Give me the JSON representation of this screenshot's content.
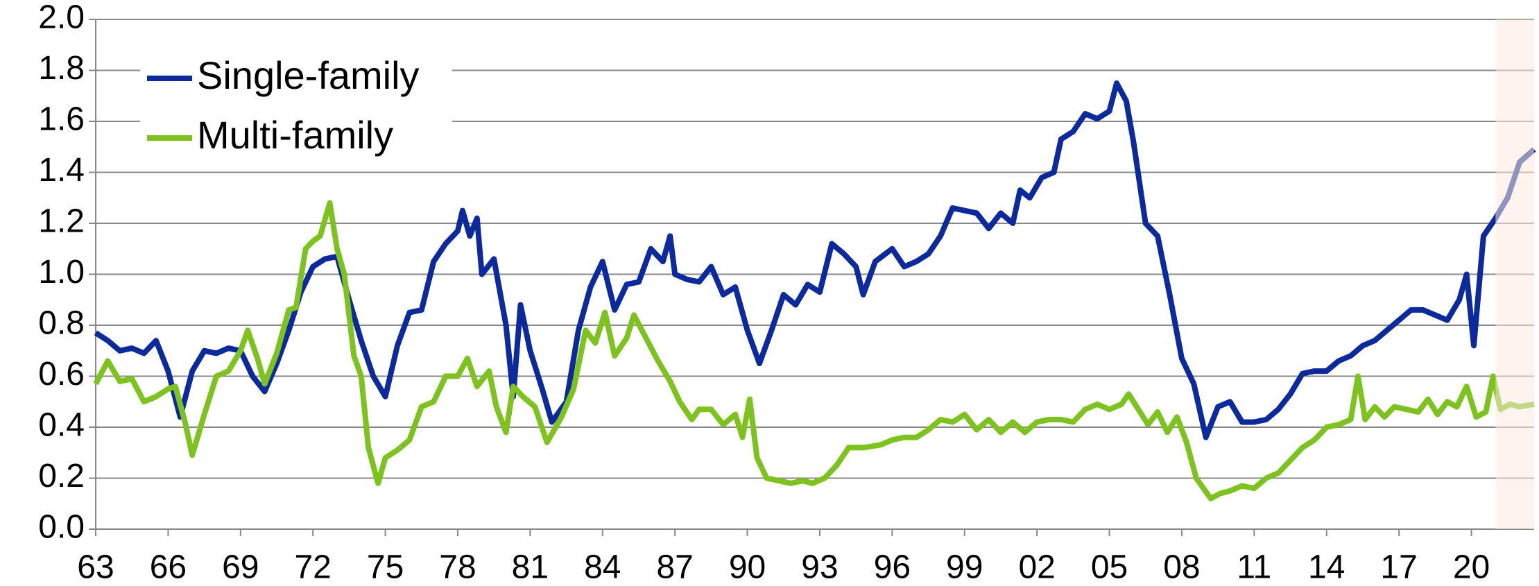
{
  "chart_data": {
    "type": "line",
    "xlim": [
      1963,
      2022.6
    ],
    "xticks": [
      {
        "value": 1963,
        "label": "63"
      },
      {
        "value": 1966,
        "label": "66"
      },
      {
        "value": 1969,
        "label": "69"
      },
      {
        "value": 1972,
        "label": "72"
      },
      {
        "value": 1975,
        "label": "75"
      },
      {
        "value": 1978,
        "label": "78"
      },
      {
        "value": 1981,
        "label": "81"
      },
      {
        "value": 1984,
        "label": "84"
      },
      {
        "value": 1987,
        "label": "87"
      },
      {
        "value": 1990,
        "label": "90"
      },
      {
        "value": 1993,
        "label": "93"
      },
      {
        "value": 1996,
        "label": "96"
      },
      {
        "value": 1999,
        "label": "99"
      },
      {
        "value": 2002,
        "label": "02"
      },
      {
        "value": 2005,
        "label": "05"
      },
      {
        "value": 2008,
        "label": "08"
      },
      {
        "value": 2011,
        "label": "11"
      },
      {
        "value": 2014,
        "label": "14"
      },
      {
        "value": 2017,
        "label": "17"
      },
      {
        "value": 2020,
        "label": "20"
      }
    ],
    "ylim": [
      0,
      2.0
    ],
    "yticks": [
      {
        "value": 0,
        "label": "0.0"
      },
      {
        "value": 0.2,
        "label": "0.2"
      },
      {
        "value": 0.4,
        "label": "0.4"
      },
      {
        "value": 0.6,
        "label": "0.6"
      },
      {
        "value": 0.8,
        "label": "0.8"
      },
      {
        "value": 1.0,
        "label": "1.0"
      },
      {
        "value": 1.2,
        "label": "1.2"
      },
      {
        "value": 1.4,
        "label": "1.4"
      },
      {
        "value": 1.6,
        "label": "1.6"
      },
      {
        "value": 1.8,
        "label": "1.8"
      },
      {
        "value": 2.0,
        "label": "2.0"
      }
    ],
    "grid": true,
    "legend": "upper left",
    "shaded_region": [
      2021,
      2022.6
    ],
    "shade_color": "#fde9df",
    "series": [
      {
        "name": "Single-family",
        "color": "#0c2a9c",
        "x": [
          1963,
          1963.5,
          1964,
          1964.5,
          1965,
          1965.5,
          1966,
          1966.5,
          1967,
          1967.5,
          1968,
          1968.5,
          1969,
          1969.5,
          1970,
          1970.5,
          1971,
          1971.5,
          1972,
          1972.5,
          1973,
          1973.5,
          1974,
          1974.5,
          1975,
          1975.5,
          1976,
          1976.5,
          1977,
          1977.5,
          1978,
          1978.2,
          1978.5,
          1978.8,
          1979,
          1979.5,
          1980,
          1980.3,
          1980.6,
          1981,
          1981.5,
          1981.9,
          1982.5,
          1983,
          1983.5,
          1984,
          1984.5,
          1985,
          1985.5,
          1986,
          1986.5,
          1986.8,
          1987,
          1987.5,
          1988,
          1988.5,
          1989,
          1989.5,
          1990,
          1990.5,
          1991,
          1991.5,
          1992,
          1992.5,
          1993,
          1993.5,
          1994,
          1994.5,
          1994.8,
          1995.3,
          1996,
          1996.5,
          1997,
          1997.5,
          1998,
          1998.5,
          1999,
          1999.5,
          2000,
          2000.5,
          2001,
          2001.3,
          2001.7,
          2002.2,
          2002.7,
          2003,
          2003.5,
          2004,
          2004.5,
          2005,
          2005.3,
          2005.7,
          2006,
          2006.5,
          2007,
          2007.5,
          2008,
          2008.5,
          2009,
          2009.5,
          2010,
          2010.5,
          2011,
          2011.5,
          2012,
          2012.5,
          2013,
          2013.5,
          2014,
          2014.5,
          2015,
          2015.5,
          2016,
          2016.5,
          2017,
          2017.5,
          2018,
          2018.5,
          2019,
          2019.5,
          2019.8,
          2020.1,
          2020.5,
          2021,
          2021.5,
          2022,
          2022.6
        ],
        "values": [
          0.77,
          0.74,
          0.7,
          0.71,
          0.69,
          0.74,
          0.62,
          0.44,
          0.62,
          0.7,
          0.69,
          0.71,
          0.7,
          0.6,
          0.54,
          0.65,
          0.78,
          0.93,
          1.03,
          1.06,
          1.07,
          0.9,
          0.74,
          0.6,
          0.52,
          0.72,
          0.85,
          0.86,
          1.05,
          1.12,
          1.17,
          1.25,
          1.15,
          1.22,
          1.0,
          1.06,
          0.8,
          0.52,
          0.88,
          0.7,
          0.55,
          0.42,
          0.5,
          0.78,
          0.95,
          1.05,
          0.86,
          0.96,
          0.97,
          1.1,
          1.05,
          1.15,
          1.0,
          0.98,
          0.97,
          1.03,
          0.92,
          0.95,
          0.78,
          0.65,
          0.78,
          0.92,
          0.88,
          0.96,
          0.93,
          1.12,
          1.08,
          1.03,
          0.92,
          1.05,
          1.1,
          1.03,
          1.05,
          1.08,
          1.15,
          1.26,
          1.25,
          1.24,
          1.18,
          1.24,
          1.2,
          1.33,
          1.3,
          1.38,
          1.4,
          1.53,
          1.56,
          1.63,
          1.61,
          1.64,
          1.75,
          1.68,
          1.52,
          1.2,
          1.15,
          0.92,
          0.67,
          0.57,
          0.36,
          0.48,
          0.5,
          0.42,
          0.42,
          0.43,
          0.47,
          0.53,
          0.61,
          0.62,
          0.62,
          0.66,
          0.68,
          0.72,
          0.74,
          0.78,
          0.82,
          0.86,
          0.86,
          0.84,
          0.82,
          0.9,
          1.0,
          0.72,
          1.15,
          1.22,
          1.3,
          1.44,
          1.49
        ]
      },
      {
        "name": "Multi-family",
        "color": "#7dc21e",
        "x": [
          1963,
          1963.5,
          1964,
          1964.5,
          1965,
          1965.5,
          1966,
          1966.3,
          1966.7,
          1967,
          1967.5,
          1968,
          1968.5,
          1969,
          1969.3,
          1969.7,
          1970,
          1970.5,
          1971,
          1971.3,
          1971.7,
          1972,
          1972.3,
          1972.7,
          1973,
          1973.3,
          1973.7,
          1974,
          1974.3,
          1974.7,
          1975,
          1975.5,
          1976,
          1976.5,
          1977,
          1977.5,
          1978,
          1978.4,
          1978.8,
          1979.3,
          1979.6,
          1980,
          1980.3,
          1980.7,
          1981.2,
          1981.7,
          1982.3,
          1982.8,
          1983.3,
          1983.7,
          1984.1,
          1984.5,
          1985,
          1985.3,
          1985.8,
          1986.3,
          1986.8,
          1987.2,
          1987.7,
          1988,
          1988.5,
          1989,
          1989.5,
          1989.8,
          1990.1,
          1990.4,
          1990.8,
          1991.3,
          1991.8,
          1992.3,
          1992.7,
          1993.2,
          1993.7,
          1994.2,
          1994.8,
          1995.5,
          1996,
          1996.5,
          1997,
          1997.5,
          1998,
          1998.5,
          1999,
          1999.5,
          2000,
          2000.5,
          2001,
          2001.5,
          2002,
          2002.5,
          2003,
          2003.5,
          2004,
          2004.5,
          2005,
          2005.5,
          2005.8,
          2006.2,
          2006.6,
          2007,
          2007.4,
          2007.8,
          2008.2,
          2008.6,
          2009.2,
          2009.6,
          2010,
          2010.5,
          2011,
          2011.5,
          2012,
          2012.5,
          2013,
          2013.5,
          2014,
          2014.5,
          2015,
          2015.3,
          2015.6,
          2016,
          2016.4,
          2016.8,
          2017.3,
          2017.8,
          2018.2,
          2018.6,
          2019,
          2019.4,
          2019.8,
          2020.2,
          2020.6,
          2020.9,
          2021.2,
          2021.6,
          2022,
          2022.6
        ],
        "values": [
          0.57,
          0.66,
          0.58,
          0.59,
          0.5,
          0.52,
          0.55,
          0.56,
          0.42,
          0.29,
          0.45,
          0.6,
          0.62,
          0.7,
          0.78,
          0.67,
          0.57,
          0.69,
          0.86,
          0.87,
          1.1,
          1.13,
          1.15,
          1.28,
          1.1,
          1.0,
          0.68,
          0.6,
          0.32,
          0.18,
          0.28,
          0.31,
          0.35,
          0.48,
          0.5,
          0.6,
          0.6,
          0.67,
          0.56,
          0.62,
          0.48,
          0.38,
          0.56,
          0.52,
          0.48,
          0.34,
          0.44,
          0.55,
          0.78,
          0.73,
          0.85,
          0.68,
          0.75,
          0.84,
          0.75,
          0.66,
          0.58,
          0.5,
          0.43,
          0.47,
          0.47,
          0.41,
          0.45,
          0.36,
          0.51,
          0.28,
          0.2,
          0.19,
          0.18,
          0.19,
          0.18,
          0.2,
          0.25,
          0.32,
          0.32,
          0.33,
          0.35,
          0.36,
          0.36,
          0.39,
          0.43,
          0.42,
          0.45,
          0.39,
          0.43,
          0.38,
          0.42,
          0.38,
          0.42,
          0.43,
          0.43,
          0.42,
          0.47,
          0.49,
          0.47,
          0.49,
          0.53,
          0.47,
          0.41,
          0.46,
          0.38,
          0.44,
          0.34,
          0.2,
          0.12,
          0.14,
          0.15,
          0.17,
          0.16,
          0.2,
          0.22,
          0.27,
          0.32,
          0.35,
          0.4,
          0.41,
          0.43,
          0.6,
          0.43,
          0.48,
          0.44,
          0.48,
          0.47,
          0.46,
          0.51,
          0.45,
          0.5,
          0.48,
          0.56,
          0.44,
          0.46,
          0.6,
          0.47,
          0.49,
          0.48,
          0.49
        ]
      }
    ]
  }
}
